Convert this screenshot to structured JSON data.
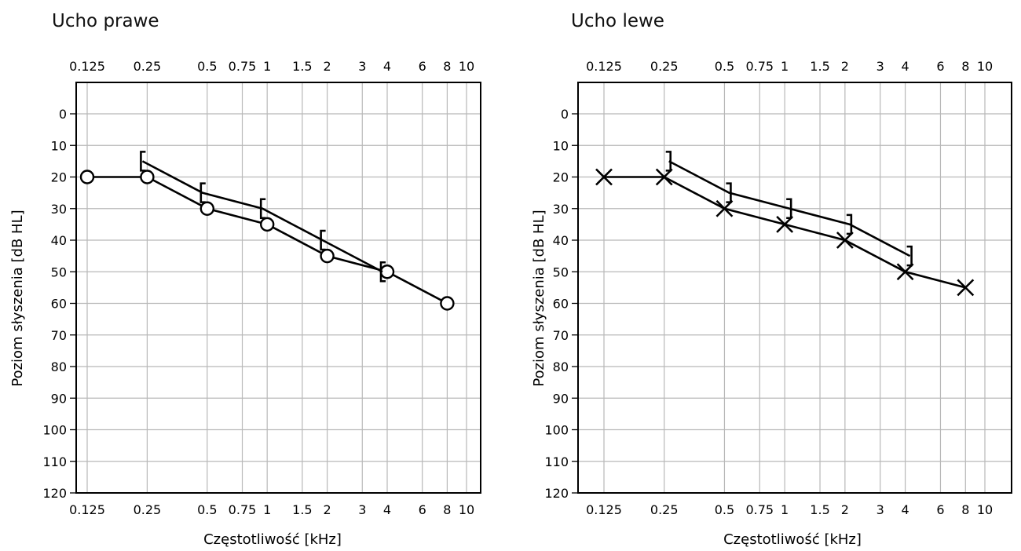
{
  "chart_data": [
    {
      "type": "line",
      "title": "Ucho prawe",
      "xlabel": "Częstotliwość [kHz]",
      "ylabel": "Poziom słyszenia [dB HL]",
      "x_scale": "log",
      "x_ticks": [
        "0.125",
        "0.25",
        "0.5",
        "0.75",
        "1",
        "1.5",
        "2",
        "3",
        "4",
        "6",
        "8",
        "10"
      ],
      "y_ticks": [
        "0",
        "10",
        "20",
        "30",
        "40",
        "50",
        "60",
        "70",
        "80",
        "90",
        "100",
        "110",
        "120"
      ],
      "ylim": [
        120,
        -10
      ],
      "xlim": [
        0.1,
        16
      ],
      "grid": true,
      "series": [
        {
          "marker": "circle",
          "x": [
            0.125,
            0.25,
            0.5,
            1,
            2,
            4,
            8
          ],
          "y": [
            20,
            20,
            30,
            35,
            45,
            50,
            60
          ]
        },
        {
          "marker": "bracket-left",
          "x": [
            0.25,
            0.5,
            1,
            2,
            4
          ],
          "y": [
            15,
            25,
            30,
            40,
            50
          ]
        }
      ]
    },
    {
      "type": "line",
      "title": "Ucho lewe",
      "xlabel": "Częstotliwość [kHz]",
      "ylabel": "Poziom słyszenia [dB HL]",
      "x_scale": "log",
      "x_ticks": [
        "0.125",
        "0.25",
        "0.5",
        "0.75",
        "1",
        "1.5",
        "2",
        "3",
        "4",
        "6",
        "8",
        "10"
      ],
      "y_ticks": [
        "0",
        "10",
        "20",
        "30",
        "40",
        "50",
        "60",
        "70",
        "80",
        "90",
        "100",
        "110",
        "120"
      ],
      "ylim": [
        120,
        -10
      ],
      "xlim": [
        0.1,
        16
      ],
      "grid": true,
      "series": [
        {
          "marker": "cross",
          "x": [
            0.125,
            0.25,
            0.5,
            1,
            2,
            4,
            8
          ],
          "y": [
            20,
            20,
            30,
            35,
            40,
            50,
            55
          ]
        },
        {
          "marker": "bracket-right",
          "x": [
            0.25,
            0.5,
            1,
            2,
            4
          ],
          "y": [
            15,
            25,
            30,
            35,
            45
          ]
        }
      ]
    }
  ]
}
